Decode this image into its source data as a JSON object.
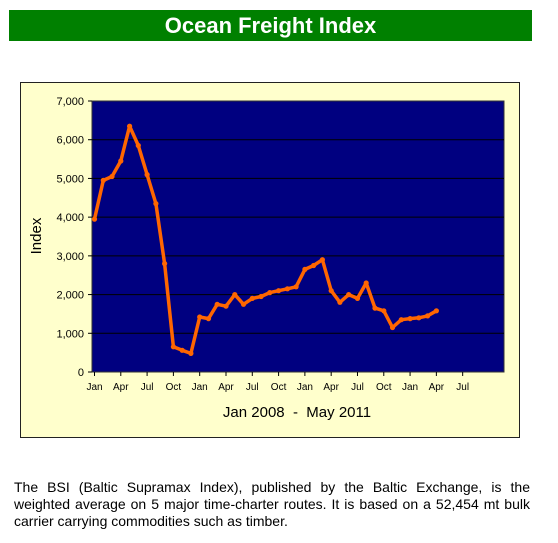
{
  "chart_data": {
    "type": "line",
    "title": "Ocean Freight Index",
    "xlabel": "Jan 2008  -  May 2011",
    "ylabel": "Index",
    "ylim": [
      0,
      7000
    ],
    "yticks": [
      "0",
      "1,000",
      "2,000",
      "3,000",
      "4,000",
      "5,000",
      "6,000",
      "7,000"
    ],
    "xticks": [
      "Jan",
      "Apr",
      "Jul",
      "Oct",
      "Jan",
      "Apr",
      "Jul",
      "Oct",
      "Jan",
      "Apr",
      "Jul",
      "Oct",
      "Jan",
      "Apr",
      "Jul"
    ],
    "grid": "horizontal",
    "legend": "none",
    "plot_bg": "#000080",
    "panel_bg": "#ffffcc",
    "line_color": "#ff6600",
    "series": [
      {
        "values": [
          3950,
          4950,
          5050,
          5450,
          6350,
          5850,
          5100,
          4350,
          2800,
          650,
          560,
          480,
          1420,
          1380,
          1750,
          1700,
          2000,
          1750,
          1900,
          1950,
          2050,
          2100,
          2150,
          2200,
          2650,
          2750,
          2900,
          2100,
          1800,
          2000,
          1900,
          2300,
          1650,
          1580,
          1150,
          1350,
          1380,
          1400,
          1450,
          1580
        ]
      }
    ]
  },
  "banner": {
    "title": "Ocean Freight Index"
  },
  "description": "The BSI (Baltic Supramax Index), published by the Baltic Exchange, is the weighted average on 5 major time-charter routes. It is based on a 52,454 mt bulk carrier carrying commodities such as timber."
}
